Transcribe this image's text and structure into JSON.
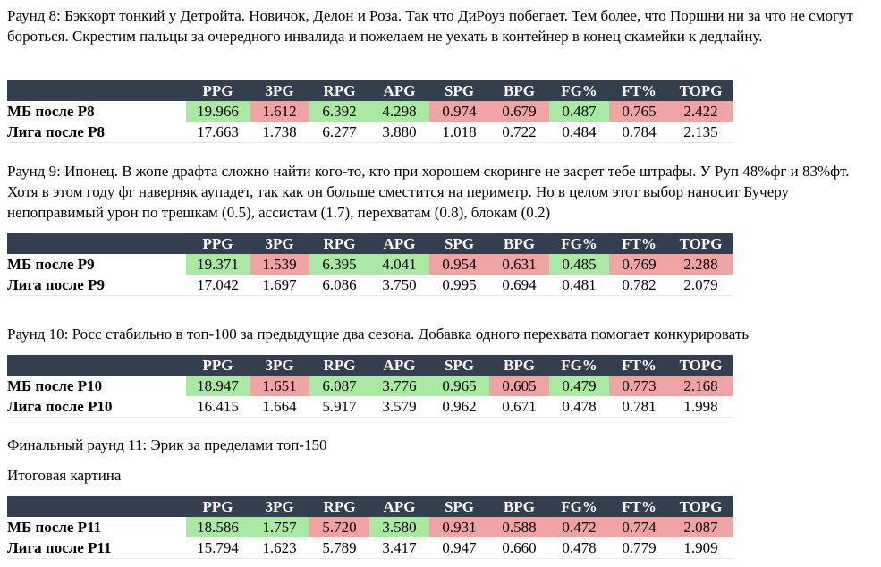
{
  "columns": [
    "PPG",
    "3PG",
    "RPG",
    "APG",
    "SPG",
    "BPG",
    "FG%",
    "FT%",
    "TOPG"
  ],
  "colors": {
    "header_bg": "#333f4f",
    "good": "#a9e9a4",
    "bad": "#f0a3a3"
  },
  "blocks": [
    {
      "text": "Раунд 8: Бэккорт тонкий у Детройта. Новичок, Делон и Роза. Так что ДиРоуз побегает. Тем более, что Поршни ни за что не смогут бороться. Скрестим пальцы за очередного инвалида и пожелаем не уехать в контейнер в конец скамейки к дедлайну.",
      "mb_label": "МБ после Р8",
      "mb_values": [
        "19.966",
        "1.612",
        "6.392",
        "4.298",
        "0.974",
        "0.679",
        "0.487",
        "0.765",
        "2.422"
      ],
      "mb_status": [
        "good",
        "bad",
        "good",
        "good",
        "bad",
        "bad",
        "good",
        "bad",
        "bad"
      ],
      "league_label": "Лига после Р8",
      "league_values": [
        "17.663",
        "1.738",
        "6.277",
        "3.880",
        "1.018",
        "0.722",
        "0.484",
        "0.784",
        "2.135"
      ]
    },
    {
      "text": "Раунд 9: Ипонец. В жопе драфта сложно найти кого-то, кто при хорошем скоринге не засрет тебе штрафы. У Руп 48%фг и 83%фт. Хотя в этом году фг наверняк аупадет, так как он больше сместится на периметр. Но в целом этот выбор наносит Бучеру непоправимый урон по трешкам (0.5), ассистам (1.7), перехватам (0.8), блокам (0.2)",
      "mb_label": "МБ после Р9",
      "mb_values": [
        "19.371",
        "1.539",
        "6.395",
        "4.041",
        "0.954",
        "0.631",
        "0.485",
        "0.769",
        "2.288"
      ],
      "mb_status": [
        "good",
        "bad",
        "good",
        "good",
        "bad",
        "bad",
        "good",
        "bad",
        "bad"
      ],
      "league_label": "Лига после Р9",
      "league_values": [
        "17.042",
        "1.697",
        "6.086",
        "3.750",
        "0.995",
        "0.694",
        "0.481",
        "0.782",
        "2.079"
      ]
    },
    {
      "text": "Раунд 10: Росс стабильно в топ-100 за предыдущие два сезона. Добавка одного перехвата помогает конкурировать",
      "mb_label": "МБ после Р10",
      "mb_values": [
        "18.947",
        "1.651",
        "6.087",
        "3.776",
        "0.965",
        "0.605",
        "0.479",
        "0.773",
        "2.168"
      ],
      "mb_status": [
        "good",
        "bad",
        "good",
        "good",
        "good",
        "bad",
        "good",
        "bad",
        "bad"
      ],
      "league_label": "Лига после Р10",
      "league_values": [
        "16.415",
        "1.664",
        "5.917",
        "3.579",
        "0.962",
        "0.671",
        "0.478",
        "0.781",
        "1.998"
      ]
    },
    {
      "text": "Финальный раунд 11: Эрик за пределами топ-150",
      "text2": "Итоговая картина",
      "mb_label": "МБ после Р11",
      "mb_values": [
        "18.586",
        "1.757",
        "5.720",
        "3.580",
        "0.931",
        "0.588",
        "0.472",
        "0.774",
        "2.087"
      ],
      "mb_status": [
        "good",
        "good",
        "bad",
        "good",
        "bad",
        "bad",
        "bad",
        "bad",
        "bad"
      ],
      "league_label": "Лига после Р11",
      "league_values": [
        "15.794",
        "1.623",
        "5.789",
        "3.417",
        "0.947",
        "0.660",
        "0.478",
        "0.779",
        "1.909"
      ]
    }
  ]
}
